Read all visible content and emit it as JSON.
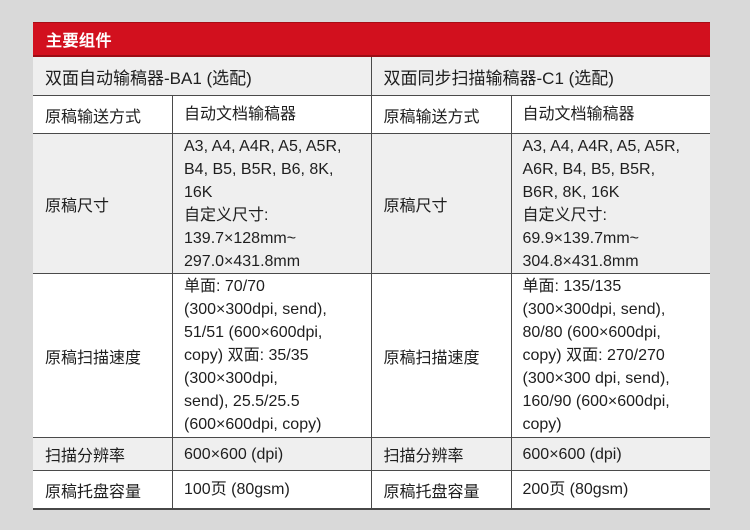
{
  "page": {
    "background": "#d9d9d9"
  },
  "table": {
    "title": "主要组件",
    "accent_color": "#d2101e",
    "panels": [
      {
        "subtitle": "双面自动输稿器-BA1 (选配)",
        "rows": [
          {
            "label": "原稿输送方式",
            "value": "自动文档输稿器"
          },
          {
            "label": "原稿尺寸",
            "value": "A3, A4, A4R, A5, A5R,\nB4, B5, B5R, B6, 8K,\n16K\n自定义尺寸:\n139.7×128mm~\n297.0×431.8mm"
          },
          {
            "label": "原稿扫描速度",
            "value": "单面: 70/70\n(300×300dpi, send),\n51/51 (600×600dpi,\ncopy) 双面: 35/35\n(300×300dpi,\nsend), 25.5/25.5\n(600×600dpi, copy)"
          },
          {
            "label": "扫描分辨率",
            "value": "600×600 (dpi)"
          },
          {
            "label": "原稿托盘容量",
            "value": "100页 (80gsm)"
          }
        ]
      },
      {
        "subtitle": "双面同步扫描输稿器-C1 (选配)",
        "rows": [
          {
            "label": "原稿输送方式",
            "value": "自动文档输稿器"
          },
          {
            "label": "原稿尺寸",
            "value": "A3, A4, A4R, A5, A5R,\nA6R, B4, B5, B5R,\nB6R, 8K, 16K\n自定义尺寸:\n69.9×139.7mm~\n304.8×431.8mm"
          },
          {
            "label": "原稿扫描速度",
            "value": "单面: 135/135\n(300×300dpi, send),\n80/80 (600×600dpi,\ncopy) 双面: 270/270\n(300×300 dpi, send),\n160/90 (600×600dpi,\ncopy)"
          },
          {
            "label": "扫描分辨率",
            "value": "600×600 (dpi)"
          },
          {
            "label": "原稿托盘容量",
            "value": "200页 (80gsm)"
          }
        ]
      }
    ]
  }
}
